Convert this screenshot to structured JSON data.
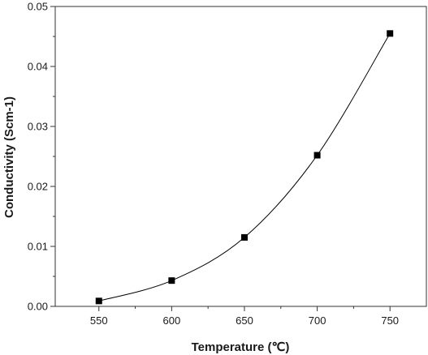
{
  "chart_data": {
    "type": "line",
    "title": "",
    "xlabel": "Temperature (℃)",
    "ylabel": "Conductivity (Scm-1)",
    "xlim": [
      520,
      775
    ],
    "ylim": [
      0,
      0.05
    ],
    "x_ticks": [
      550,
      600,
      650,
      700,
      750
    ],
    "x_tick_labels": [
      "550",
      "600",
      "650",
      "700",
      "750"
    ],
    "y_ticks": [
      0,
      0.01,
      0.02,
      0.03,
      0.04,
      0.05
    ],
    "y_tick_labels": [
      "0.00",
      "0.01",
      "0.02",
      "0.03",
      "0.04",
      "0.05"
    ],
    "series": [
      {
        "marker": "square",
        "color": "#000000",
        "x": [
          550,
          600,
          650,
          700,
          750
        ],
        "y": [
          0.0009,
          0.0043,
          0.0115,
          0.0252,
          0.0455
        ]
      }
    ],
    "grid": false,
    "legend": "none"
  }
}
